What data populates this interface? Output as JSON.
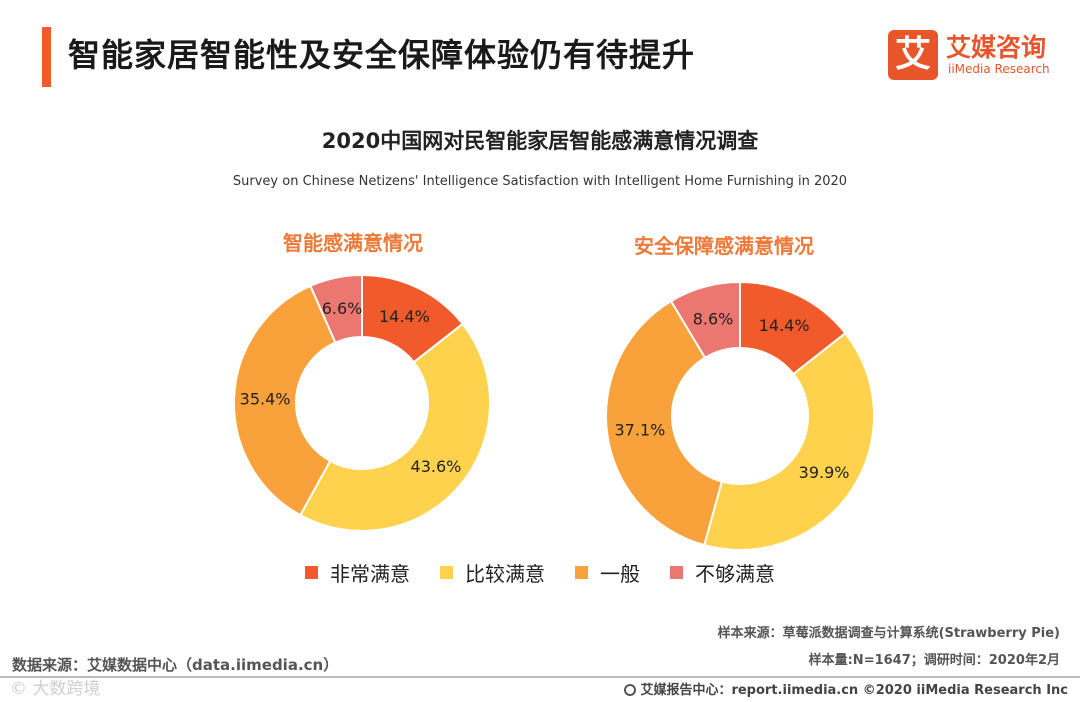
{
  "header": {
    "title": "智能家居智能性及安全保障体验仍有待提升",
    "logo_mark": "艾",
    "logo_cn": "艾媒咨询",
    "logo_en": "iiMedia Research"
  },
  "colors": {
    "accent": "#f15a2b",
    "series": [
      "#f15a2b",
      "#ffd24d",
      "#f9a23c",
      "#ec7770"
    ]
  },
  "chart_data": [
    {
      "type": "pie",
      "title": "2020中国网对民智能家居智能感满意情况调查",
      "subtitle": "Survey on Chinese Netizens' Intelligence Satisfaction with Intelligent Home Furnishing in 2020",
      "chart_title": "智能感满意情况",
      "categories": [
        "非常满意",
        "比较满意",
        "一般",
        "不够满意"
      ],
      "values": [
        14.4,
        43.6,
        35.4,
        6.6
      ],
      "labels": [
        "14.4%",
        "43.6%",
        "35.4%",
        "6.6%"
      ]
    },
    {
      "type": "pie",
      "title": "2020中国网对民智能家居智能感满意情况调查",
      "subtitle": "Survey on Chinese Netizens' Intelligence Satisfaction with Intelligent Home Furnishing in 2020",
      "chart_title": "安全保障感满意情况",
      "categories": [
        "非常满意",
        "比较满意",
        "一般",
        "不够满意"
      ],
      "values": [
        14.4,
        39.9,
        37.1,
        8.6
      ],
      "labels": [
        "14.4%",
        "39.9%",
        "37.1%",
        "8.6%"
      ]
    }
  ],
  "legend": [
    "非常满意",
    "比较满意",
    "一般",
    "不够满意"
  ],
  "notes": {
    "sample_source": "样本来源：草莓派数据调查与计算系统(Strawberry Pie)",
    "sample_size": "样本量:N=1647；调研时间：2020年2月"
  },
  "source": "数据来源：艾媒数据中心（data.iimedia.cn）",
  "footer": "艾媒报告中心：report.iimedia.cn    ©2020  iiMedia Research  Inc",
  "watermark": "© 大数跨境"
}
